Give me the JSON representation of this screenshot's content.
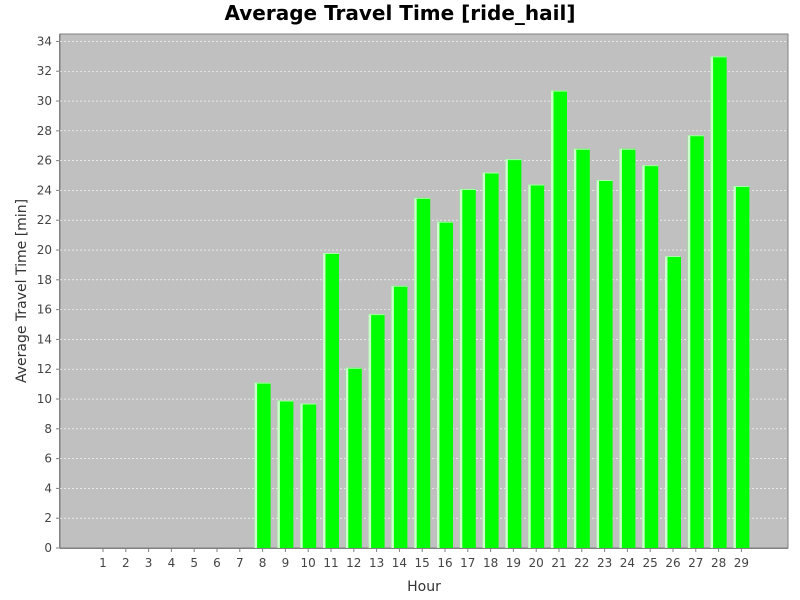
{
  "chart_data": {
    "type": "bar",
    "title": "Average Travel Time [ride_hail]",
    "xlabel": "Hour",
    "ylabel": "Average Travel Time [min]",
    "categories": [
      "1",
      "2",
      "3",
      "4",
      "5",
      "6",
      "7",
      "8",
      "9",
      "10",
      "11",
      "12",
      "13",
      "14",
      "15",
      "16",
      "17",
      "18",
      "19",
      "20",
      "21",
      "22",
      "23",
      "24",
      "25",
      "26",
      "27",
      "28",
      "29"
    ],
    "values": [
      0,
      0,
      0,
      0,
      0,
      0,
      0,
      11.1,
      9.9,
      9.7,
      19.8,
      12.1,
      15.7,
      17.6,
      23.5,
      21.9,
      24.1,
      25.2,
      26.1,
      24.4,
      30.7,
      26.8,
      24.7,
      26.8,
      25.7,
      19.6,
      27.7,
      33.0,
      24.3
    ],
    "ylim": [
      0,
      34.5
    ],
    "yticks": [
      0,
      2,
      4,
      6,
      8,
      10,
      12,
      14,
      16,
      18,
      20,
      22,
      24,
      26,
      28,
      30,
      32,
      34
    ],
    "grid": true,
    "plot_background": "#c0c0c0",
    "bar_color": "#00ff00",
    "grid_color": "#ffffff"
  }
}
